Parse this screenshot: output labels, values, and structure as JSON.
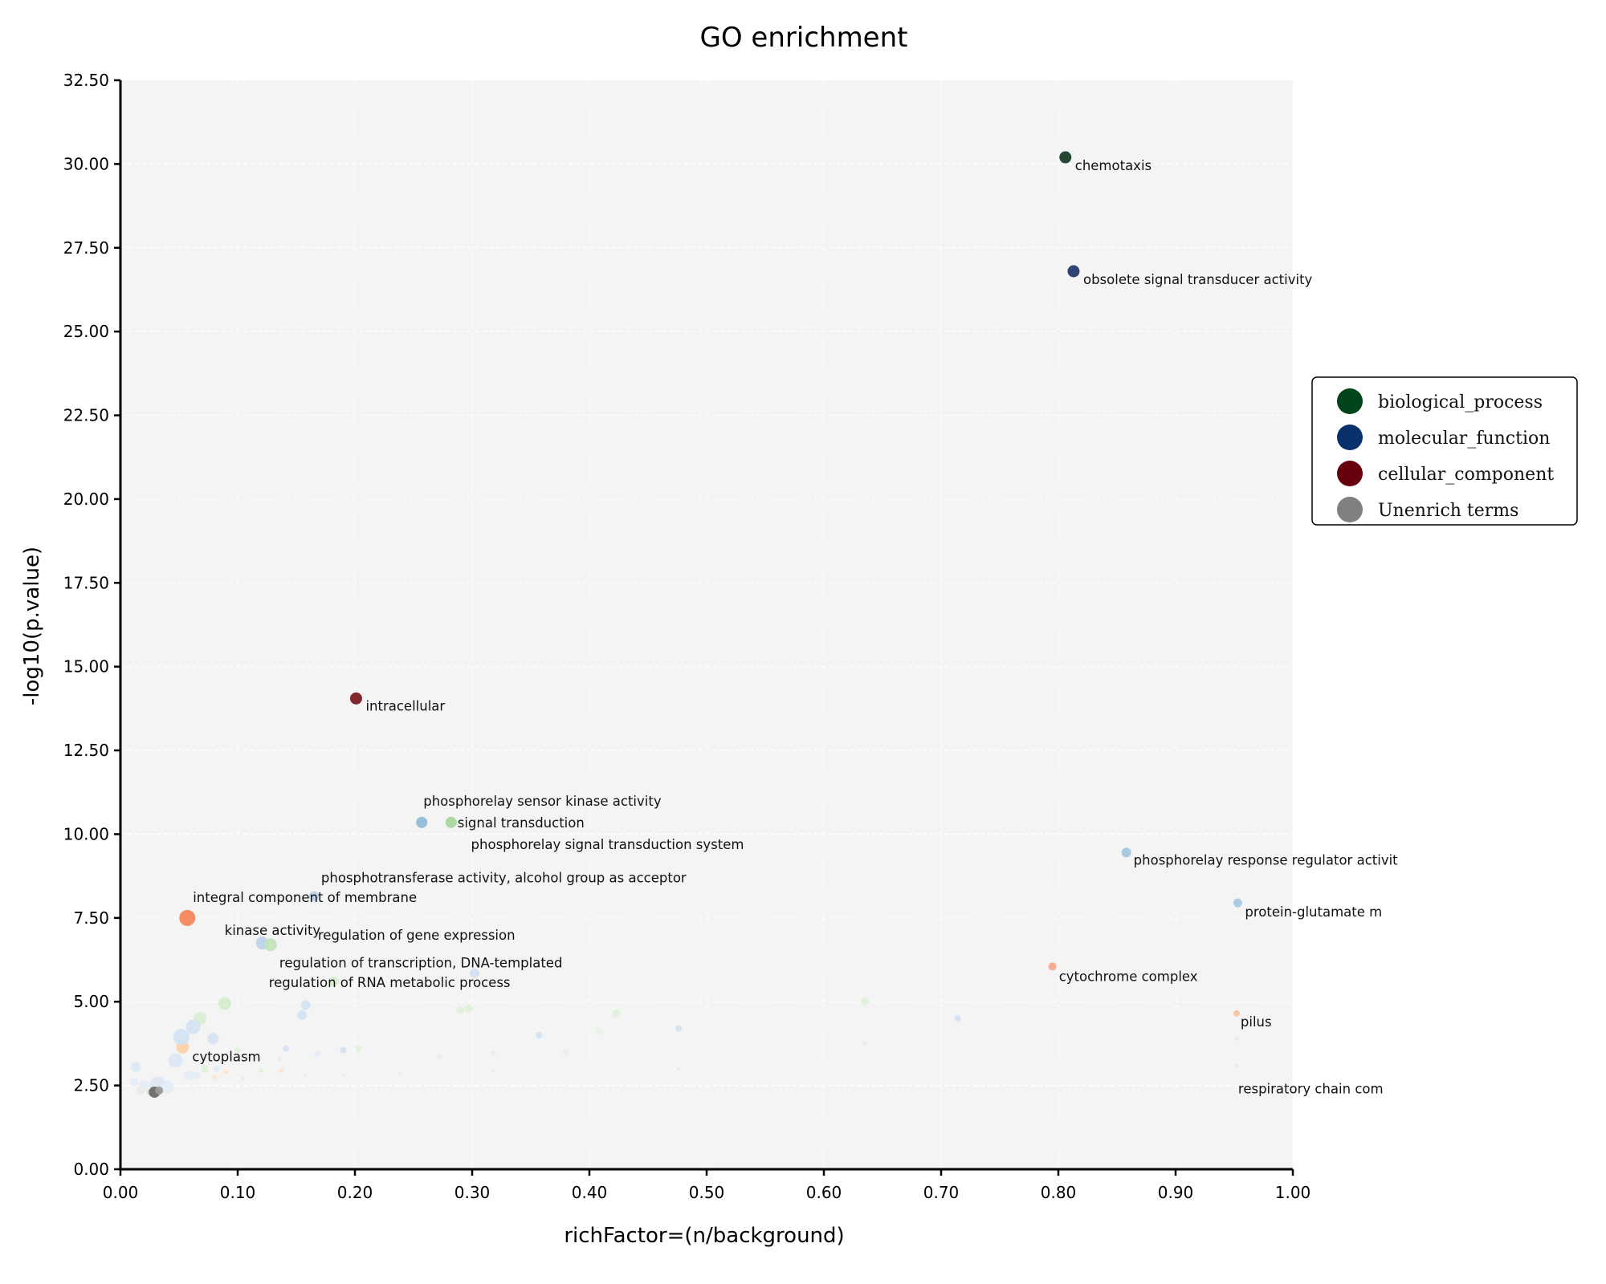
{
  "chart_data": {
    "type": "scatter",
    "title": "GO enrichment",
    "xlabel": "richFactor=(n/background)",
    "ylabel": "-log10(p.value)",
    "xlim": [
      0,
      1
    ],
    "ylim": [
      0,
      32.5
    ],
    "x_ticks": [
      "0.00",
      "0.10",
      "0.20",
      "0.30",
      "0.40",
      "0.50",
      "0.60",
      "0.70",
      "0.80",
      "0.90",
      "1.00"
    ],
    "y_ticks": [
      "0.00",
      "2.50",
      "5.00",
      "7.50",
      "10.00",
      "12.50",
      "15.00",
      "17.50",
      "20.00",
      "22.50",
      "25.00",
      "27.50",
      "30.00",
      "32.50"
    ],
    "grid": true,
    "legend_position": "right",
    "legend": [
      {
        "name": "biological_process",
        "color": "#00441b"
      },
      {
        "name": "molecular_function",
        "color": "#08306b"
      },
      {
        "name": "cellular_component",
        "color": "#67000d"
      },
      {
        "name": "Unenrich terms",
        "color": "#808080"
      }
    ],
    "labeled_points": [
      {
        "label": "chemotaxis",
        "x": 0.806,
        "y": 30.2,
        "category": "biological_process",
        "color": "#1c3f26"
      },
      {
        "label": "obsolete signal transducer activity",
        "x": 0.813,
        "y": 26.8,
        "category": "molecular_function",
        "color": "#233a6b"
      },
      {
        "label": "intracellular",
        "x": 0.201,
        "y": 14.05,
        "category": "cellular_component",
        "color": "#7a1a22"
      },
      {
        "label": "phosphorelay sensor kinase activity",
        "x": 0.257,
        "y": 10.35,
        "category": "molecular_function",
        "color": "#8fbcd8"
      },
      {
        "label": "signal transduction",
        "x": 0.282,
        "y": 10.35,
        "category": "biological_process",
        "color": "#a6d79c"
      },
      {
        "label": "phosphorelay signal transduction system",
        "x": 0.286,
        "y": 10.3,
        "category": "biological_process",
        "color": "#b4dfaa"
      },
      {
        "label": "phosphorelay response regulator activit",
        "x": 0.858,
        "y": 9.45,
        "category": "molecular_function",
        "color": "#a2c6e0"
      },
      {
        "label": "phosphotransferase activity, alcohol group as acceptor",
        "x": 0.165,
        "y": 8.15,
        "category": "molecular_function",
        "color": "#bcd2ea"
      },
      {
        "label": "protein-glutamate m",
        "x": 0.953,
        "y": 7.95,
        "category": "molecular_function",
        "color": "#a9c9e2"
      },
      {
        "label": "integral component of membrane",
        "x": 0.057,
        "y": 7.5,
        "category": "cellular_component",
        "color": "#f4865a"
      },
      {
        "label": "kinase activity",
        "x": 0.121,
        "y": 6.75,
        "category": "molecular_function",
        "color": "#bcd3ec"
      },
      {
        "label": "regulation of gene expression",
        "x": 0.128,
        "y": 6.7,
        "category": "biological_process",
        "color": "#c3e4bb"
      },
      {
        "label": "regulation of transcription, DNA-templated",
        "x": 0.302,
        "y": 5.85,
        "category": "molecular_function",
        "color": "#d3e0f0"
      },
      {
        "label": "cytochrome complex",
        "x": 0.795,
        "y": 6.05,
        "category": "cellular_component",
        "color": "#f5a98c"
      },
      {
        "label": "regulation of RNA metabolic process",
        "x": 0.182,
        "y": 5.6,
        "category": "biological_process",
        "color": "#d3ebcb"
      },
      {
        "label": "pilus",
        "x": 0.952,
        "y": 4.65,
        "category": "cellular_component",
        "color": "#f8c39f"
      },
      {
        "label": "cytoplasm",
        "x": 0.053,
        "y": 3.65,
        "category": "cellular_component",
        "color": "#fed2a8"
      },
      {
        "label": "respiratory chain com",
        "x": 0.952,
        "y": 3.1,
        "category": "cellular_component",
        "color": "#f8d4c0"
      }
    ],
    "points": [
      {
        "x": 0.806,
        "y": 30.2,
        "r": 7.5,
        "color": "#1c3f26"
      },
      {
        "x": 0.813,
        "y": 26.8,
        "r": 7.5,
        "color": "#233a6b"
      },
      {
        "x": 0.201,
        "y": 14.05,
        "r": 7.5,
        "color": "#7a1a22"
      },
      {
        "x": 0.257,
        "y": 10.35,
        "r": 7,
        "color": "#8fbcd8"
      },
      {
        "x": 0.282,
        "y": 10.35,
        "r": 7,
        "color": "#a6d79c"
      },
      {
        "x": 0.858,
        "y": 9.45,
        "r": 6,
        "color": "#a2c6e0"
      },
      {
        "x": 0.165,
        "y": 8.15,
        "r": 6,
        "color": "#bcd2ea"
      },
      {
        "x": 0.953,
        "y": 7.95,
        "r": 5.5,
        "color": "#a9c9e2"
      },
      {
        "x": 0.057,
        "y": 7.5,
        "r": 10,
        "color": "#f4865a"
      },
      {
        "x": 0.121,
        "y": 6.75,
        "r": 8,
        "color": "#bcd3ec"
      },
      {
        "x": 0.128,
        "y": 6.7,
        "r": 8,
        "color": "#c3e4bb"
      },
      {
        "x": 0.302,
        "y": 5.85,
        "r": 6,
        "color": "#d3e0f0"
      },
      {
        "x": 0.795,
        "y": 6.05,
        "r": 5,
        "color": "#f5a98c"
      },
      {
        "x": 0.182,
        "y": 5.6,
        "r": 6,
        "color": "#d3ebcb"
      },
      {
        "x": 0.952,
        "y": 4.65,
        "r": 4,
        "color": "#f8c39f"
      },
      {
        "x": 0.053,
        "y": 3.65,
        "r": 8,
        "color": "#fed2a8"
      },
      {
        "x": 0.952,
        "y": 3.1,
        "r": 2,
        "color": "#e8e8e8"
      },
      {
        "x": 0.089,
        "y": 4.95,
        "r": 8,
        "color": "#d4ecce"
      },
      {
        "x": 0.068,
        "y": 4.5,
        "r": 8,
        "color": "#d8eed2"
      },
      {
        "x": 0.062,
        "y": 4.25,
        "r": 9,
        "color": "#d4e2f2"
      },
      {
        "x": 0.052,
        "y": 3.95,
        "r": 10,
        "color": "#d4e2f2"
      },
      {
        "x": 0.079,
        "y": 3.9,
        "r": 7,
        "color": "#d6e3f2"
      },
      {
        "x": 0.158,
        "y": 4.9,
        "r": 6,
        "color": "#d4e2f2"
      },
      {
        "x": 0.155,
        "y": 4.6,
        "r": 6,
        "color": "#d4e2f2"
      },
      {
        "x": 0.047,
        "y": 3.25,
        "r": 9,
        "color": "#dde8f4"
      },
      {
        "x": 0.013,
        "y": 3.05,
        "r": 6,
        "color": "#dde8f4"
      },
      {
        "x": 0.02,
        "y": 2.5,
        "r": 6,
        "color": "#e4ecf6"
      },
      {
        "x": 0.032,
        "y": 2.5,
        "r": 11,
        "color": "#dde8f4"
      },
      {
        "x": 0.04,
        "y": 2.45,
        "r": 8,
        "color": "#e4ecf6"
      },
      {
        "x": 0.058,
        "y": 2.8,
        "r": 6,
        "color": "#e4ecf6"
      },
      {
        "x": 0.065,
        "y": 2.8,
        "r": 5,
        "color": "#e4ecf6"
      },
      {
        "x": 0.012,
        "y": 2.6,
        "r": 5,
        "color": "#e4ecf6"
      },
      {
        "x": 0.017,
        "y": 2.35,
        "r": 5,
        "color": "#eaeaea"
      },
      {
        "x": 0.025,
        "y": 2.3,
        "r": 4,
        "color": "#dddddd"
      },
      {
        "x": 0.029,
        "y": 2.3,
        "r": 7,
        "color": "#6b6b6b"
      },
      {
        "x": 0.033,
        "y": 2.35,
        "r": 5,
        "color": "#9a9a9a"
      },
      {
        "x": 0.072,
        "y": 3.0,
        "r": 5,
        "color": "#dff1d8"
      },
      {
        "x": 0.082,
        "y": 3.0,
        "r": 4,
        "color": "#e4ecf6"
      },
      {
        "x": 0.09,
        "y": 2.9,
        "r": 3,
        "color": "#fde3c8"
      },
      {
        "x": 0.08,
        "y": 2.75,
        "r": 3,
        "color": "#fde3c8"
      },
      {
        "x": 0.1,
        "y": 3.55,
        "r": 4,
        "color": "#dff1d8"
      },
      {
        "x": 0.104,
        "y": 2.7,
        "r": 2,
        "color": "#e4ecf6"
      },
      {
        "x": 0.12,
        "y": 2.95,
        "r": 3,
        "color": "#dff1d8"
      },
      {
        "x": 0.136,
        "y": 3.3,
        "r": 3,
        "color": "#e4ecf6"
      },
      {
        "x": 0.141,
        "y": 3.6,
        "r": 4,
        "color": "#d4e2f2"
      },
      {
        "x": 0.137,
        "y": 2.95,
        "r": 3,
        "color": "#fde3c8"
      },
      {
        "x": 0.158,
        "y": 2.8,
        "r": 2,
        "color": "#e4ecf6"
      },
      {
        "x": 0.168,
        "y": 3.45,
        "r": 4,
        "color": "#e4ecf6"
      },
      {
        "x": 0.19,
        "y": 3.55,
        "r": 4,
        "color": "#d4e2f2"
      },
      {
        "x": 0.203,
        "y": 3.6,
        "r": 4,
        "color": "#dff1d8"
      },
      {
        "x": 0.19,
        "y": 2.8,
        "r": 2,
        "color": "#eaeaea"
      },
      {
        "x": 0.238,
        "y": 2.85,
        "r": 2,
        "color": "#eaeaea"
      },
      {
        "x": 0.272,
        "y": 3.35,
        "r": 3,
        "color": "#eaeaea"
      },
      {
        "x": 0.29,
        "y": 4.75,
        "r": 5,
        "color": "#dff1d8"
      },
      {
        "x": 0.297,
        "y": 4.8,
        "r": 5,
        "color": "#dff1d8"
      },
      {
        "x": 0.318,
        "y": 3.45,
        "r": 3,
        "color": "#eaeaea"
      },
      {
        "x": 0.318,
        "y": 2.95,
        "r": 2,
        "color": "#eaeaea"
      },
      {
        "x": 0.357,
        "y": 4.0,
        "r": 4,
        "color": "#d4e2f2"
      },
      {
        "x": 0.38,
        "y": 3.5,
        "r": 3,
        "color": "#eaeaea"
      },
      {
        "x": 0.408,
        "y": 4.1,
        "r": 4,
        "color": "#e8f3e4"
      },
      {
        "x": 0.423,
        "y": 4.65,
        "r": 5,
        "color": "#dff1d8"
      },
      {
        "x": 0.476,
        "y": 4.2,
        "r": 4,
        "color": "#d4e2f2"
      },
      {
        "x": 0.476,
        "y": 3.0,
        "r": 2,
        "color": "#eaeaea"
      },
      {
        "x": 0.635,
        "y": 5.0,
        "r": 5,
        "color": "#dff1d8"
      },
      {
        "x": 0.635,
        "y": 3.75,
        "r": 3,
        "color": "#eaeaea"
      },
      {
        "x": 0.714,
        "y": 4.5,
        "r": 4,
        "color": "#d4e2f2"
      },
      {
        "x": 0.952,
        "y": 3.9,
        "r": 3,
        "color": "#e4ecf6"
      }
    ]
  }
}
